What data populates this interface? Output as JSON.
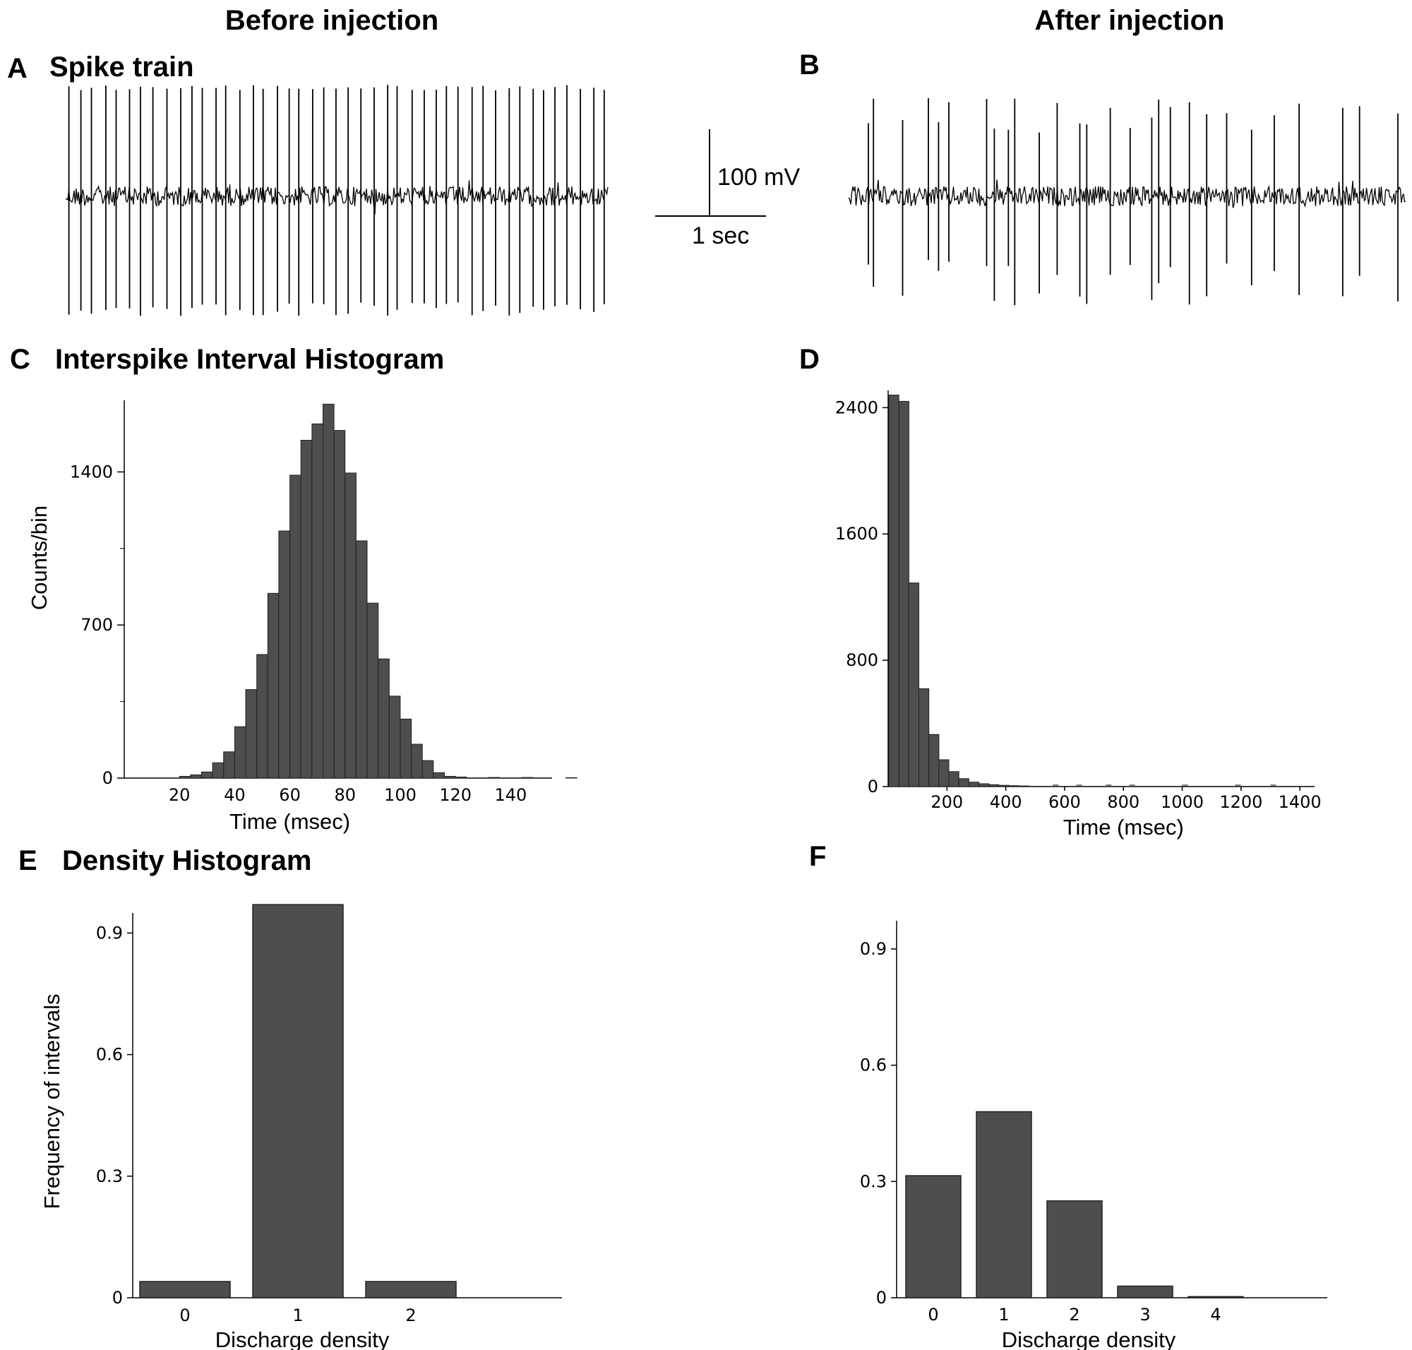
{
  "columns": {
    "left": "Before injection",
    "right": "After injection"
  },
  "panels": {
    "A": {
      "letter": "A",
      "title": "Spike train"
    },
    "B": {
      "letter": "B",
      "title": ""
    },
    "C": {
      "letter": "C",
      "title": "Interspike Interval Histogram"
    },
    "D": {
      "letter": "D",
      "title": ""
    },
    "E": {
      "letter": "E",
      "title": "Density Histogram"
    },
    "F": {
      "letter": "F",
      "title": ""
    }
  },
  "scalebar": {
    "voltage": "100 mV",
    "time": "1 sec"
  },
  "colors": {
    "bar": "#4d4f4f",
    "trace": "#000000"
  },
  "chart_data": [
    {
      "id": "A",
      "type": "line",
      "title": "Spike train",
      "description_of_content": "regular spike train",
      "spike_count": 45,
      "duration_sec": 10
    },
    {
      "id": "B",
      "type": "line",
      "title": "",
      "spike_count": 41,
      "duration_sec": 10
    },
    {
      "id": "C",
      "type": "bar",
      "title": "Interspike Interval Histogram",
      "xlabel": "Time (msec)",
      "ylabel": "Counts/bin",
      "bin_width": 4,
      "x": [
        20,
        24,
        28,
        32,
        36,
        40,
        44,
        48,
        52,
        56,
        60,
        64,
        68,
        72,
        76,
        80,
        84,
        88,
        92,
        96,
        100,
        104
      ],
      "values": [
        8,
        15,
        28,
        70,
        120,
        235,
        405,
        565,
        845,
        1130,
        1385,
        1545,
        1620,
        1710,
        1590,
        1395,
        1085,
        800,
        545,
        375,
        270,
        155
      ],
      "extra_bins": [
        {
          "x": 108,
          "value": 80
        },
        {
          "x": 112,
          "value": 25
        },
        {
          "x": 116,
          "value": 8
        },
        {
          "x": 120,
          "value": 5
        },
        {
          "x": 132,
          "value": 3
        },
        {
          "x": 144,
          "value": 3
        },
        {
          "x": 160,
          "value": 2
        }
      ],
      "xticks": [
        20,
        40,
        60,
        80,
        100,
        120,
        140
      ],
      "yticks": [
        0,
        700,
        1400
      ],
      "xlim": [
        0,
        155
      ],
      "ylim": [
        0,
        1750
      ]
    },
    {
      "id": "D",
      "type": "bar",
      "title": "",
      "xlabel": "Time (msec)",
      "ylabel": "",
      "bin_width": 34,
      "x": [
        0,
        34,
        68,
        102,
        136,
        170,
        204,
        238,
        272,
        306,
        340,
        374,
        408,
        442
      ],
      "values": [
        2480,
        2440,
        1290,
        620,
        330,
        170,
        95,
        50,
        28,
        18,
        12,
        8,
        6,
        4
      ],
      "xticks": [
        200,
        400,
        600,
        800,
        1000,
        1200,
        1400
      ],
      "yticks": [
        0,
        800,
        1600,
        2400
      ],
      "xlim": [
        0,
        1450
      ],
      "ylim": [
        0,
        2500
      ]
    },
    {
      "id": "E",
      "type": "bar",
      "title": "Density Histogram",
      "xlabel": "Discharge density",
      "ylabel": "Frequency of intervals",
      "categories": [
        "0",
        "1",
        "2"
      ],
      "values": [
        0.04,
        0.97,
        0.04
      ],
      "yticks": [
        0,
        0.3,
        0.6,
        0.9
      ],
      "ytick_labels": [
        "0",
        "0.3",
        "0.6",
        "0.9"
      ],
      "ylim": [
        0,
        1.0
      ]
    },
    {
      "id": "F",
      "type": "bar",
      "title": "",
      "xlabel": "Discharge density",
      "ylabel": "",
      "categories": [
        "0",
        "1",
        "2",
        "3",
        "4"
      ],
      "values": [
        0.315,
        0.48,
        0.25,
        0.03,
        0.003
      ],
      "yticks": [
        0,
        0.3,
        0.6,
        0.9
      ],
      "ytick_labels": [
        "0",
        "0.3",
        "0.6",
        "0.9"
      ],
      "ylim": [
        0,
        0.98
      ]
    }
  ]
}
